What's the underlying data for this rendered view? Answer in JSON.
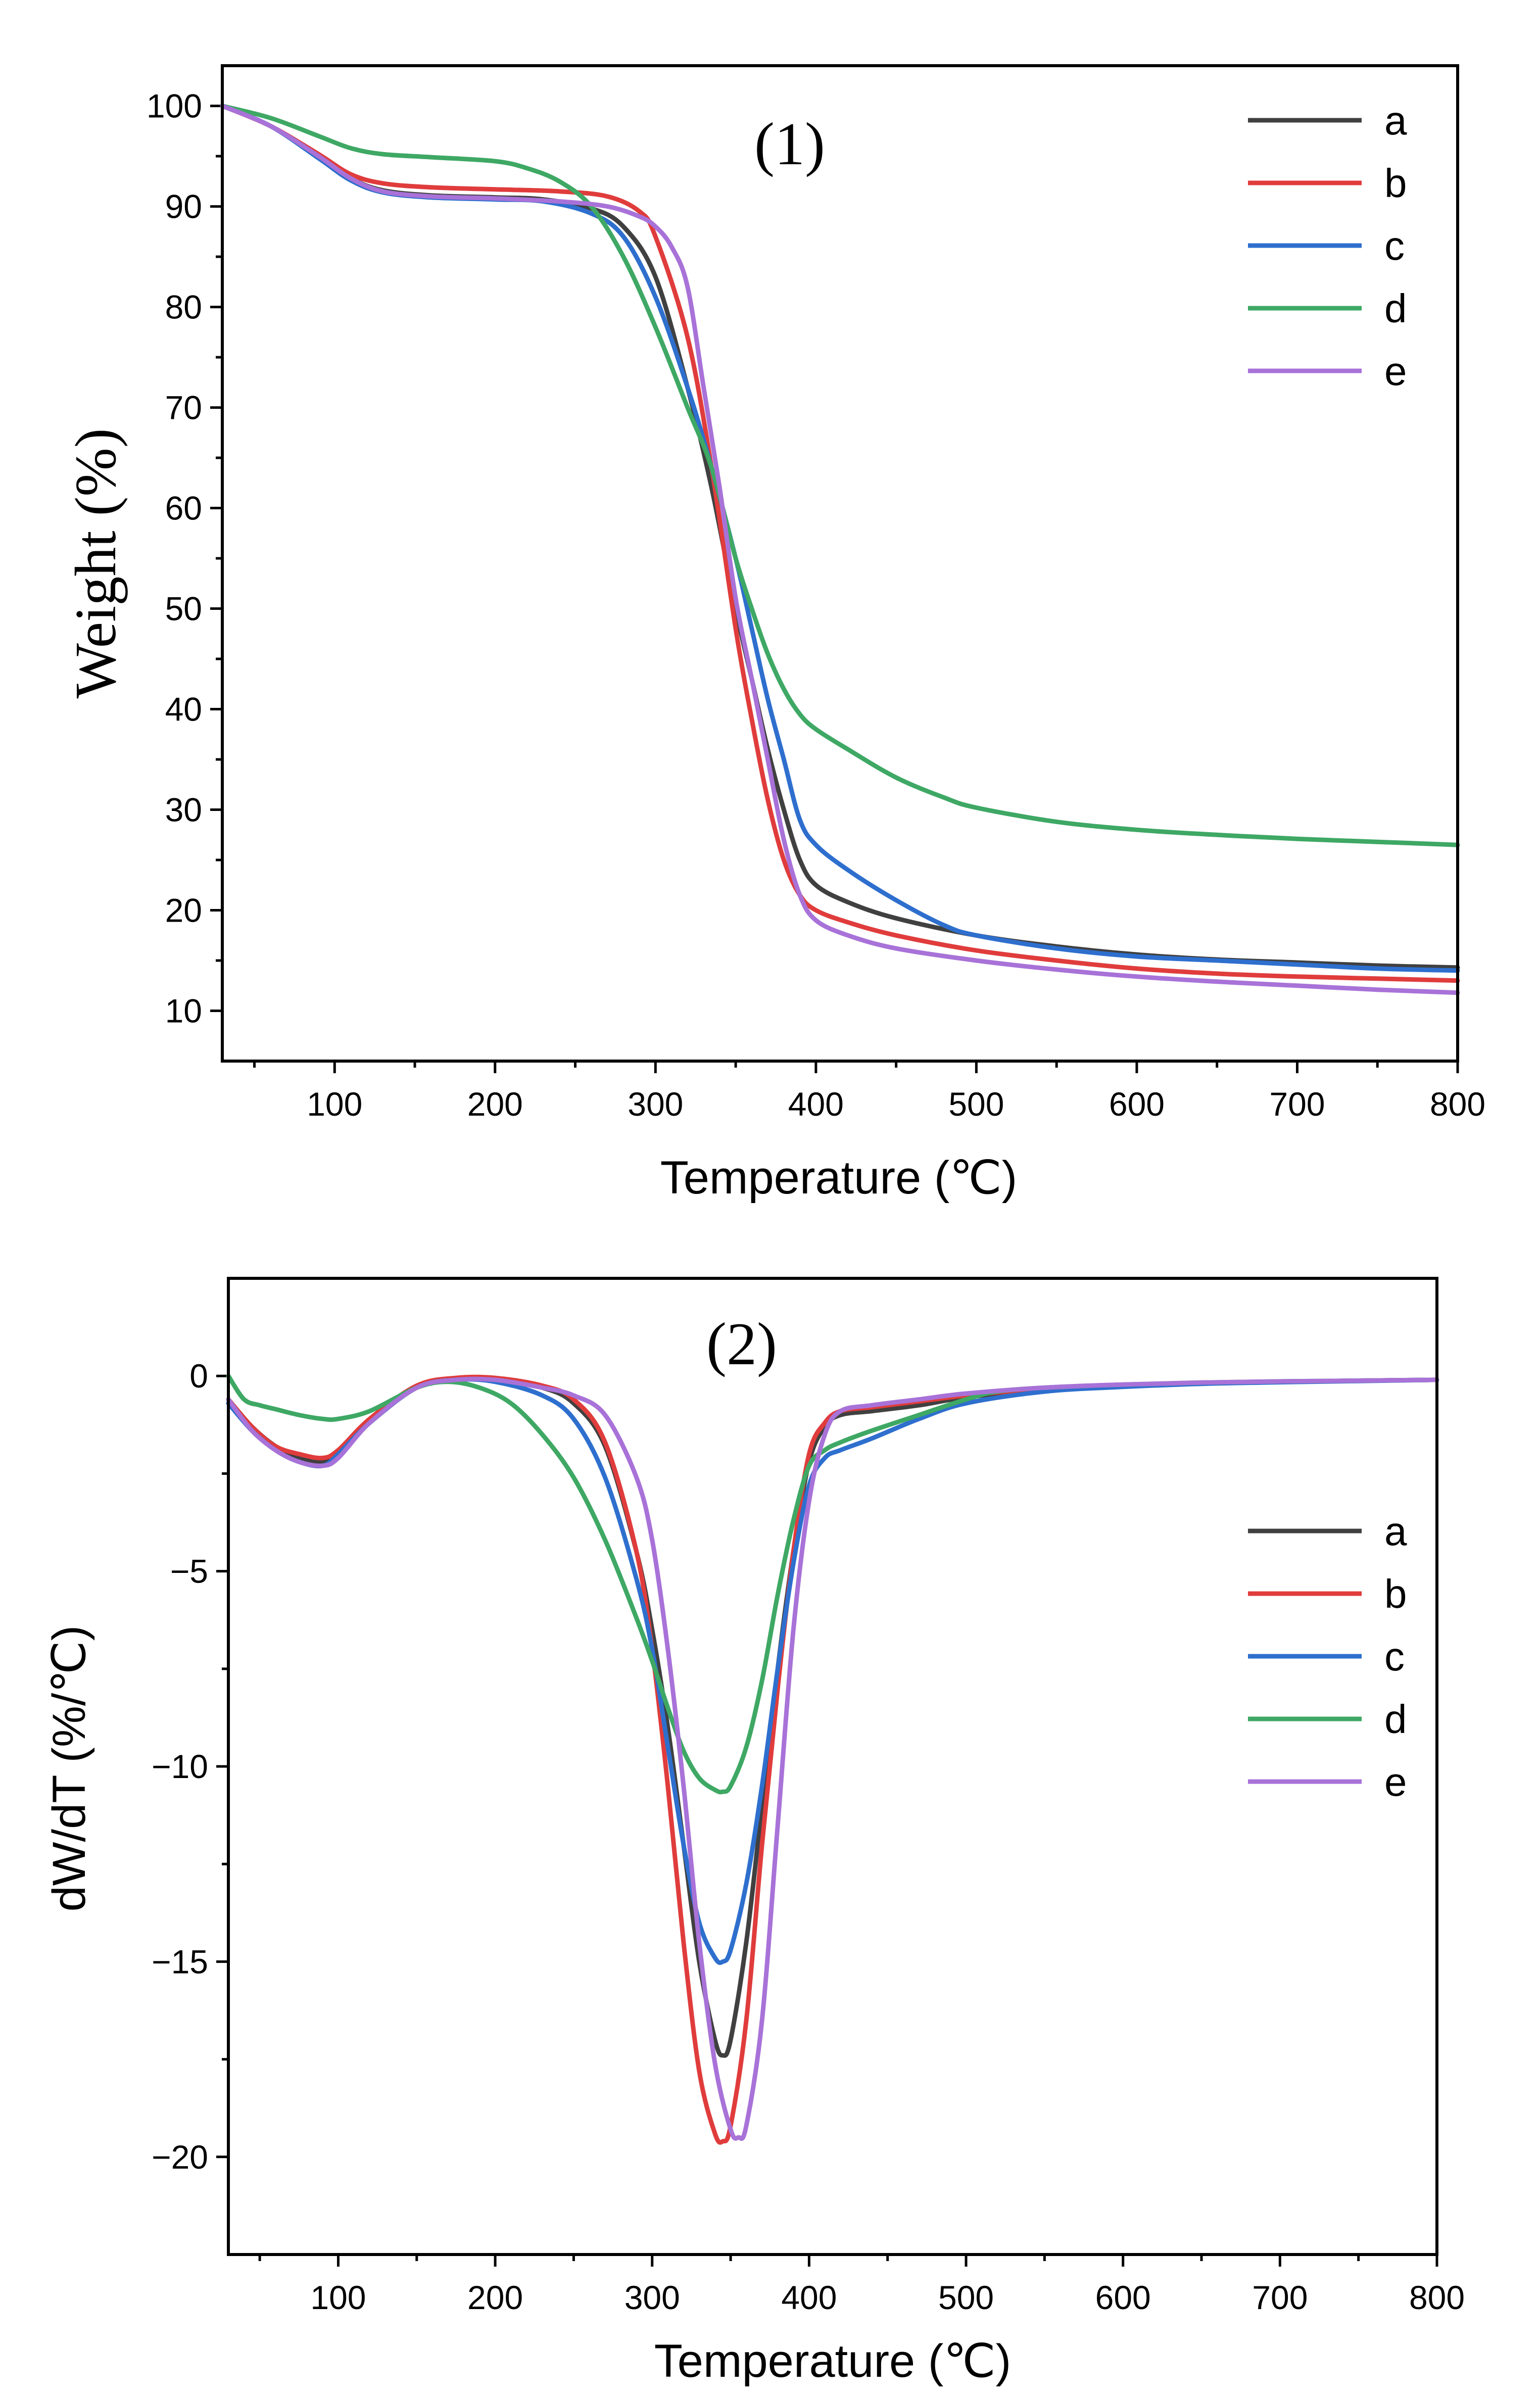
{
  "chart_data": [
    {
      "type": "line",
      "panel_label": "(1)",
      "xlabel": "Temperature (℃)",
      "ylabel": "Weight (%)",
      "xlim": [
        30,
        800
      ],
      "ylim": [
        5,
        104
      ],
      "xticks": [
        100,
        200,
        300,
        400,
        500,
        600,
        700,
        800
      ],
      "yticks": [
        10,
        20,
        30,
        40,
        50,
        60,
        70,
        80,
        90,
        100
      ],
      "legend_position": "top-right",
      "series": [
        {
          "name": "a",
          "color": "#404040",
          "x": [
            30,
            60,
            90,
            110,
            130,
            160,
            200,
            230,
            260,
            280,
            300,
            320,
            335,
            350,
            360,
            370,
            380,
            390,
            400,
            420,
            450,
            500,
            550,
            600,
            650,
            700,
            750,
            800
          ],
          "y": [
            100,
            98,
            95,
            92.8,
            91.6,
            91.1,
            90.9,
            90.7,
            89.8,
            88,
            83,
            72,
            62,
            50,
            43,
            36,
            30,
            25,
            22.5,
            20.8,
            19.2,
            17.5,
            16.4,
            15.6,
            15.1,
            14.8,
            14.5,
            14.3
          ]
        },
        {
          "name": "b",
          "color": "#e03c3c",
          "x": [
            30,
            60,
            90,
            110,
            130,
            160,
            200,
            240,
            270,
            290,
            300,
            320,
            335,
            350,
            360,
            370,
            380,
            390,
            400,
            420,
            450,
            500,
            550,
            600,
            650,
            700,
            750,
            800
          ],
          "y": [
            100,
            98,
            95.2,
            93.2,
            92.3,
            91.9,
            91.7,
            91.5,
            91,
            89.5,
            87,
            77,
            64,
            48,
            39,
            31,
            25,
            21.5,
            20,
            18.8,
            17.5,
            16,
            15,
            14.2,
            13.7,
            13.4,
            13.2,
            13
          ]
        },
        {
          "name": "c",
          "color": "#2e6fce",
          "x": [
            30,
            60,
            90,
            110,
            130,
            160,
            200,
            230,
            260,
            280,
            300,
            320,
            335,
            350,
            360,
            370,
            380,
            390,
            400,
            420,
            450,
            480,
            500,
            550,
            600,
            650,
            700,
            750,
            800
          ],
          "y": [
            100,
            98,
            94.8,
            92.6,
            91.4,
            90.9,
            90.7,
            90.5,
            89.3,
            87,
            81,
            72,
            64,
            55,
            48,
            41,
            35,
            29,
            26.5,
            24,
            21,
            18.5,
            17.5,
            16.2,
            15.4,
            15,
            14.6,
            14.2,
            14
          ]
        },
        {
          "name": "d",
          "color": "#3ea864",
          "x": [
            30,
            60,
            90,
            110,
            130,
            160,
            200,
            220,
            240,
            260,
            280,
            300,
            320,
            335,
            350,
            360,
            370,
            380,
            390,
            400,
            420,
            450,
            480,
            500,
            550,
            600,
            650,
            700,
            750,
            800
          ],
          "y": [
            100,
            98.8,
            97,
            95.8,
            95.2,
            94.9,
            94.5,
            93.8,
            92.5,
            90,
            85,
            78,
            70,
            64,
            55,
            50,
            45.5,
            42,
            39.5,
            38,
            36,
            33.2,
            31.2,
            30.2,
            28.8,
            28,
            27.5,
            27.1,
            26.8,
            26.5
          ]
        },
        {
          "name": "e",
          "color": "#a872d8",
          "x": [
            30,
            60,
            90,
            110,
            130,
            160,
            200,
            240,
            270,
            290,
            300,
            310,
            320,
            330,
            340,
            350,
            360,
            370,
            380,
            390,
            400,
            420,
            450,
            500,
            550,
            600,
            650,
            700,
            750,
            800
          ],
          "y": [
            100,
            98,
            95,
            92.8,
            91.5,
            91,
            90.8,
            90.5,
            90,
            89,
            88,
            86,
            82,
            72,
            62,
            51,
            43,
            35,
            27,
            21.5,
            19,
            17.5,
            16.2,
            15,
            14.1,
            13.4,
            12.9,
            12.5,
            12.1,
            11.8
          ]
        }
      ]
    },
    {
      "type": "line",
      "panel_label": "(2)",
      "xlabel": "Temperature (℃)",
      "ylabel": "dW/dT (%/℃)",
      "xlim": [
        30,
        800
      ],
      "ylim": [
        -22.5,
        2.5
      ],
      "xticks": [
        100,
        200,
        300,
        400,
        500,
        600,
        700,
        800
      ],
      "yticks": [
        0,
        -5,
        -10,
        -15,
        -20
      ],
      "ytick_labels": [
        "0",
        "−5",
        "−10",
        "−15",
        "−20"
      ],
      "legend_position": "right",
      "series": [
        {
          "name": "a",
          "color": "#404040",
          "x": [
            30,
            45,
            60,
            75,
            90,
            100,
            120,
            150,
            175,
            200,
            230,
            250,
            270,
            290,
            300,
            310,
            320,
            330,
            340,
            345,
            350,
            360,
            370,
            380,
            390,
            400,
            410,
            420,
            440,
            470,
            500,
            550,
            600,
            650,
            700,
            750,
            800
          ],
          "y": [
            -0.6,
            -1.3,
            -1.8,
            -2.1,
            -2.2,
            -2.0,
            -1.2,
            -0.3,
            -0.1,
            -0.1,
            -0.3,
            -0.7,
            -1.8,
            -4.5,
            -6.5,
            -9,
            -12,
            -15,
            -17,
            -17.4,
            -17,
            -14.5,
            -11,
            -7.5,
            -4.5,
            -2.2,
            -1.3,
            -1.0,
            -0.9,
            -0.75,
            -0.55,
            -0.35,
            -0.25,
            -0.18,
            -0.15,
            -0.12,
            -0.1
          ]
        },
        {
          "name": "b",
          "color": "#e03c3c",
          "x": [
            30,
            45,
            60,
            75,
            90,
            100,
            120,
            150,
            175,
            200,
            230,
            250,
            270,
            290,
            300,
            310,
            320,
            330,
            340,
            345,
            350,
            360,
            370,
            380,
            390,
            400,
            410,
            420,
            440,
            470,
            500,
            550,
            600,
            650,
            700,
            750,
            800
          ],
          "y": [
            -0.6,
            -1.3,
            -1.8,
            -2.0,
            -2.1,
            -1.9,
            -1.1,
            -0.25,
            -0.05,
            -0.05,
            -0.25,
            -0.6,
            -1.7,
            -4.5,
            -7,
            -10.5,
            -14.5,
            -17.8,
            -19.4,
            -19.6,
            -19.2,
            -16.5,
            -12,
            -8,
            -4.5,
            -2.0,
            -1.2,
            -0.9,
            -0.8,
            -0.65,
            -0.5,
            -0.33,
            -0.24,
            -0.18,
            -0.15,
            -0.12,
            -0.1
          ]
        },
        {
          "name": "c",
          "color": "#2e6fce",
          "x": [
            30,
            45,
            60,
            75,
            90,
            100,
            120,
            150,
            175,
            200,
            230,
            250,
            270,
            290,
            300,
            310,
            320,
            330,
            340,
            345,
            350,
            360,
            370,
            380,
            390,
            400,
            410,
            420,
            440,
            470,
            500,
            550,
            600,
            650,
            700,
            750,
            800
          ],
          "y": [
            -0.7,
            -1.4,
            -1.9,
            -2.2,
            -2.3,
            -2.0,
            -1.2,
            -0.3,
            -0.1,
            -0.15,
            -0.5,
            -1.1,
            -2.6,
            -5.2,
            -7,
            -9.5,
            -12,
            -14,
            -14.9,
            -15,
            -14.7,
            -13,
            -10.5,
            -7.5,
            -4.8,
            -2.8,
            -2.1,
            -1.9,
            -1.6,
            -1.1,
            -0.7,
            -0.4,
            -0.28,
            -0.2,
            -0.16,
            -0.13,
            -0.1
          ]
        },
        {
          "name": "d",
          "color": "#3ea864",
          "x": [
            30,
            40,
            50,
            60,
            75,
            90,
            100,
            120,
            150,
            170,
            190,
            210,
            230,
            250,
            270,
            290,
            300,
            310,
            320,
            330,
            340,
            345,
            350,
            360,
            370,
            380,
            390,
            400,
            410,
            420,
            440,
            470,
            500,
            520,
            550,
            600,
            650,
            700,
            750,
            800
          ],
          "y": [
            0,
            -0.6,
            -0.75,
            -0.85,
            -1.0,
            -1.1,
            -1.1,
            -0.9,
            -0.3,
            -0.15,
            -0.3,
            -0.7,
            -1.5,
            -2.6,
            -4.2,
            -6.2,
            -7.3,
            -8.5,
            -9.6,
            -10.3,
            -10.6,
            -10.65,
            -10.5,
            -9.5,
            -7.8,
            -5.6,
            -3.7,
            -2.3,
            -1.9,
            -1.7,
            -1.4,
            -1.0,
            -0.6,
            -0.4,
            -0.3,
            -0.22,
            -0.17,
            -0.14,
            -0.12,
            -0.1
          ]
        },
        {
          "name": "e",
          "color": "#a872d8",
          "x": [
            30,
            45,
            60,
            75,
            90,
            100,
            120,
            150,
            175,
            200,
            230,
            250,
            270,
            290,
            300,
            310,
            320,
            330,
            340,
            350,
            355,
            360,
            370,
            380,
            390,
            400,
            410,
            420,
            440,
            470,
            500,
            550,
            600,
            650,
            700,
            750,
            800
          ],
          "y": [
            -0.6,
            -1.4,
            -1.9,
            -2.2,
            -2.3,
            -2.1,
            -1.2,
            -0.3,
            -0.1,
            -0.1,
            -0.3,
            -0.5,
            -1.0,
            -2.6,
            -4.2,
            -7,
            -10.5,
            -14.5,
            -17.6,
            -19.3,
            -19.5,
            -19.2,
            -16.5,
            -11.5,
            -6.5,
            -3.2,
            -1.5,
            -0.9,
            -0.75,
            -0.6,
            -0.45,
            -0.3,
            -0.22,
            -0.17,
            -0.14,
            -0.12,
            -0.1
          ]
        }
      ]
    }
  ]
}
